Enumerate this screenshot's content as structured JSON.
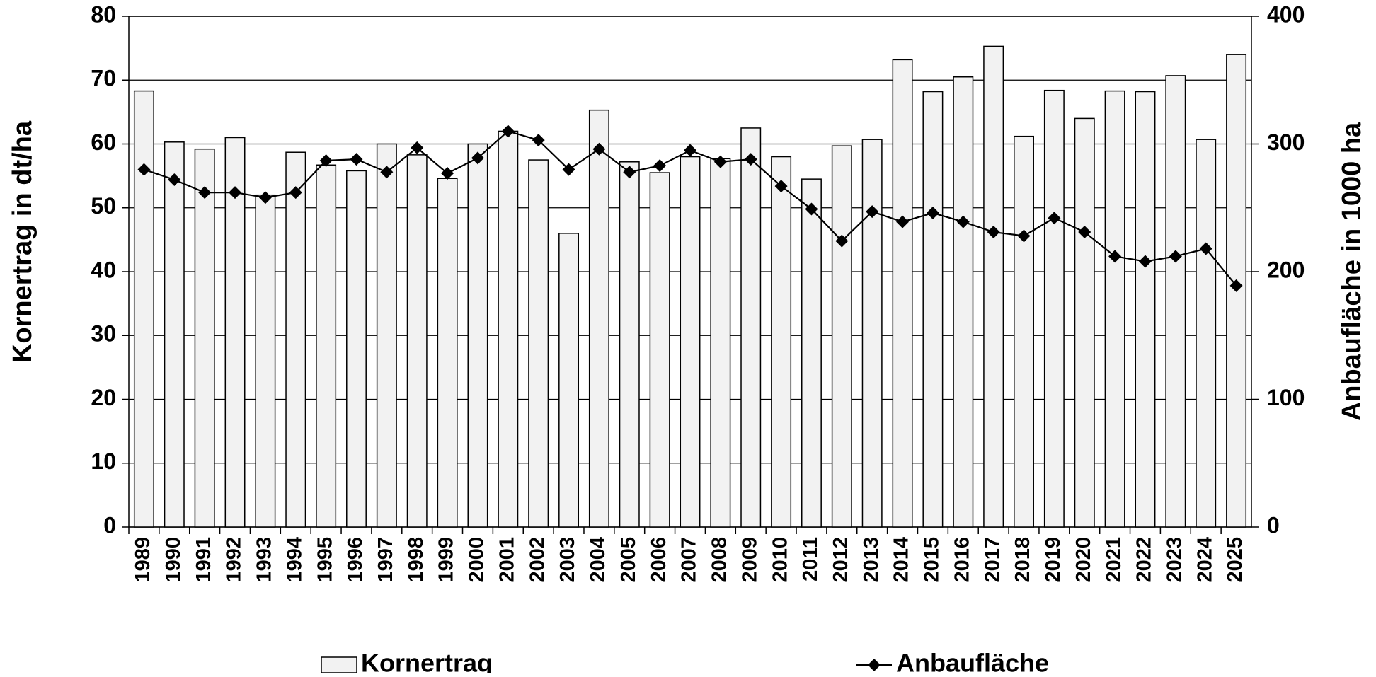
{
  "chart_data": {
    "type": "bar-line",
    "categories": [
      "1989",
      "1990",
      "1991",
      "1992",
      "1993",
      "1994",
      "1995",
      "1996",
      "1997",
      "1998",
      "1999",
      "2000",
      "2001",
      "2002",
      "2003",
      "2004",
      "2005",
      "2006",
      "2007",
      "2008",
      "2009",
      "2010",
      "2011",
      "2012",
      "2013",
      "2014",
      "2015",
      "2016",
      "2017",
      "2018",
      "2019",
      "2020",
      "2021",
      "2022",
      "2023",
      "2024",
      "2025"
    ],
    "series": [
      {
        "name": "Kornertrag",
        "type": "bar",
        "color": "#f2f2f2",
        "values": [
          68.3,
          60.3,
          59.2,
          61.0,
          52.0,
          58.7,
          56.7,
          55.8,
          60.0,
          58.3,
          54.6,
          60.0,
          62.0,
          57.5,
          46.0,
          65.3,
          57.2,
          55.5,
          58.0,
          57.7,
          62.5,
          58.0,
          54.5,
          59.7,
          60.7,
          73.2,
          68.2,
          70.5,
          75.3,
          61.2,
          68.4,
          64.0,
          68.3,
          68.2,
          70.7,
          60.7,
          74.0
        ]
      },
      {
        "name": "Anbaufläche",
        "type": "line",
        "axis": "y2",
        "color": "#000000",
        "values": [
          280,
          272,
          262,
          262,
          258,
          262,
          287,
          288,
          278,
          297,
          277,
          289,
          310,
          303,
          280,
          296,
          278,
          283,
          295,
          286,
          288,
          267,
          249,
          224,
          247,
          239,
          246,
          239,
          231,
          228,
          242,
          231,
          212,
          208,
          212,
          218,
          189
        ]
      }
    ],
    "ylabel": "Kornertrag in dt/ha",
    "y2label": "Anbaufläche in 1000 ha",
    "ylim": [
      0,
      80
    ],
    "yticks": [
      0,
      10,
      20,
      30,
      40,
      50,
      60,
      70,
      80
    ],
    "y2lim": [
      0,
      400
    ],
    "y2ticks": [
      0,
      100,
      200,
      300,
      400
    ],
    "grid": true,
    "legend": "bottom"
  }
}
